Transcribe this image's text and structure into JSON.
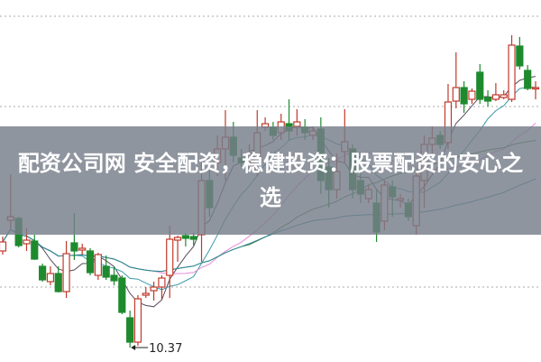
{
  "title": "配资公司网 安全配资，稳健投资：股票配资的安心之选",
  "chart_data": {
    "type": "candlestick",
    "fields": [
      "open",
      "close",
      "high",
      "low"
    ],
    "candles": [
      [
        11.44,
        11.54,
        11.6,
        11.4
      ],
      [
        11.78,
        11.82,
        12.29,
        11.69
      ],
      [
        11.8,
        11.5,
        11.82,
        11.48
      ],
      [
        11.52,
        11.56,
        11.69,
        11.44
      ],
      [
        11.55,
        11.35,
        11.62,
        11.34
      ],
      [
        11.27,
        11.12,
        11.3,
        11.1
      ],
      [
        11.1,
        11.19,
        11.27,
        11.06
      ],
      [
        11.19,
        10.99,
        11.27,
        10.98
      ],
      [
        10.99,
        11.41,
        11.55,
        10.92
      ],
      [
        11.53,
        11.44,
        11.86,
        11.34
      ],
      [
        11.45,
        11.47,
        11.52,
        11.4
      ],
      [
        11.44,
        11.2,
        11.47,
        11.17
      ],
      [
        11.17,
        11.4,
        11.42,
        11.12
      ],
      [
        11.27,
        11.15,
        11.39,
        11.12
      ],
      [
        11.17,
        11.11,
        11.27,
        11.06
      ],
      [
        11.14,
        10.76,
        11.17,
        10.74
      ],
      [
        10.7,
        10.43,
        10.78,
        10.37
      ],
      [
        10.43,
        10.91,
        10.95,
        10.39
      ],
      [
        10.95,
        10.97,
        11.04,
        10.92
      ],
      [
        11.0,
        11.04,
        11.1,
        10.89
      ],
      [
        11.04,
        11.14,
        11.17,
        10.9
      ],
      [
        11.17,
        11.57,
        11.72,
        10.92
      ],
      [
        11.56,
        11.59,
        11.61,
        11.32
      ],
      [
        11.61,
        11.58,
        11.64,
        11.49
      ],
      [
        11.6,
        11.57,
        11.64,
        11.5
      ],
      [
        11.62,
        12.22,
        12.42,
        11.32
      ],
      [
        12.22,
        11.92,
        12.47,
        11.82
      ],
      [
        12.42,
        12.57,
        12.72,
        12.27
      ],
      [
        12.57,
        12.7,
        13.0,
        12.22
      ],
      [
        12.7,
        12.5,
        12.87,
        12.42
      ],
      [
        12.47,
        12.42,
        12.57,
        12.37
      ],
      [
        12.42,
        12.52,
        12.62,
        12.32
      ],
      [
        12.32,
        12.75,
        13.0,
        12.27
      ],
      [
        12.81,
        12.85,
        12.92,
        12.77
      ],
      [
        12.81,
        12.72,
        12.87,
        12.67
      ],
      [
        12.75,
        12.87,
        12.96,
        12.67
      ],
      [
        12.85,
        12.77,
        13.12,
        12.67
      ],
      [
        12.82,
        12.87,
        13.01,
        12.72
      ],
      [
        12.81,
        12.75,
        12.9,
        12.67
      ],
      [
        12.72,
        12.77,
        12.82,
        12.67
      ],
      [
        12.79,
        12.22,
        12.92,
        12.07
      ],
      [
        12.37,
        12.12,
        12.47,
        11.92
      ],
      [
        12.12,
        12.32,
        12.52,
        12.02
      ],
      [
        12.54,
        12.65,
        13.01,
        12.42
      ],
      [
        12.57,
        12.12,
        12.62,
        12.02
      ],
      [
        12.22,
        12.07,
        12.32,
        11.97
      ],
      [
        12.02,
        12.12,
        12.17,
        11.97
      ],
      [
        11.97,
        11.65,
        12.12,
        11.54
      ],
      [
        11.77,
        12.17,
        12.22,
        11.67
      ],
      [
        12.15,
        12.04,
        12.22,
        11.82
      ],
      [
        12.0,
        12.02,
        12.07,
        11.92
      ],
      [
        11.97,
        11.82,
        12.02,
        11.77
      ],
      [
        11.72,
        12.27,
        12.32,
        11.62
      ],
      [
        12.22,
        12.62,
        12.72,
        11.92
      ],
      [
        12.62,
        12.69,
        12.82,
        12.52
      ],
      [
        12.72,
        12.62,
        12.77,
        12.57
      ],
      [
        12.64,
        13.09,
        13.29,
        12.57
      ],
      [
        13.1,
        13.25,
        13.64,
        13.02
      ],
      [
        13.25,
        13.07,
        13.32,
        12.97
      ],
      [
        13.12,
        13.21,
        13.24,
        13.07
      ],
      [
        13.42,
        13.12,
        13.51,
        13.07
      ],
      [
        13.14,
        13.1,
        13.22,
        13.04
      ],
      [
        13.12,
        13.17,
        13.3,
        13.1
      ],
      [
        13.14,
        13.17,
        13.22,
        13.12
      ],
      [
        13.12,
        13.72,
        13.83,
        13.09
      ],
      [
        13.71,
        13.49,
        13.81,
        13.45
      ],
      [
        13.44,
        13.24,
        13.5,
        13.22
      ],
      [
        13.24,
        13.25,
        13.32,
        13.12
      ]
    ],
    "low_annotation": "10.37",
    "moving_averages": [
      {
        "period": 5,
        "color": "#5a4a5e"
      },
      {
        "period": 10,
        "color": "#3a9aa8"
      },
      {
        "period": 20,
        "color": "#e58ad8"
      },
      {
        "period": 30,
        "color": "#3f7f3f"
      },
      {
        "period": 60,
        "color": "#2f8a9a"
      }
    ],
    "up_color": "#c0392b",
    "down_color": "#1e8a2e",
    "grid": "dotted-horizontal"
  }
}
